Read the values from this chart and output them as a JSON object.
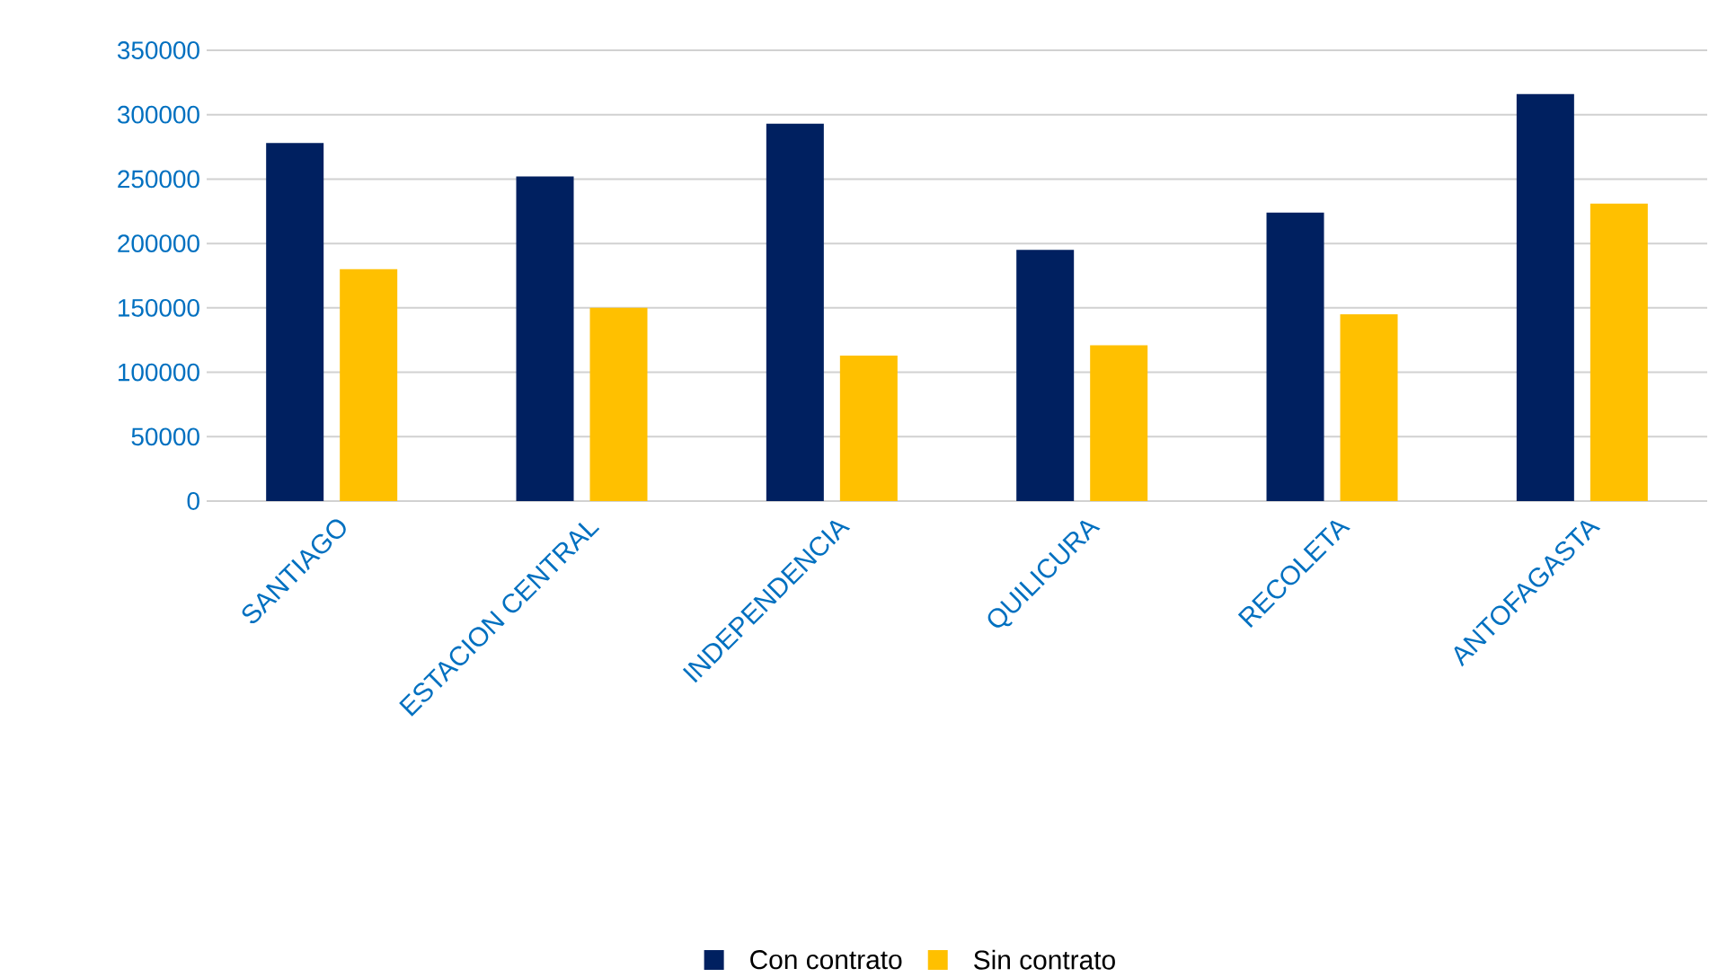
{
  "chart_data": {
    "type": "bar",
    "categories": [
      "SANTIAGO",
      "ESTACION CENTRAL",
      "INDEPENDENCIA",
      "QUILICURA",
      "RECOLETA",
      "ANTOFAGASTA"
    ],
    "series": [
      {
        "name": "Con contrato",
        "color": "#002060",
        "values": [
          278000,
          252000,
          293000,
          195000,
          224000,
          316000
        ]
      },
      {
        "name": "Sin contrato",
        "color": "#ffc000",
        "values": [
          180000,
          150000,
          113000,
          121000,
          145000,
          231000
        ]
      }
    ],
    "ylim": [
      0,
      350000
    ],
    "yticks": [
      0,
      50000,
      100000,
      150000,
      200000,
      250000,
      300000,
      350000
    ],
    "grid": "y",
    "legend": "bottom"
  }
}
